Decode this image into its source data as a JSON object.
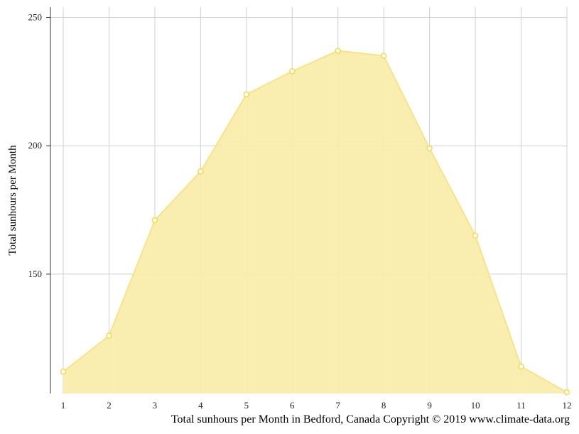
{
  "chart_data": {
    "type": "area",
    "x": [
      1,
      2,
      3,
      4,
      5,
      6,
      7,
      8,
      9,
      10,
      11,
      12
    ],
    "series": [
      {
        "values": [
          112,
          126,
          171,
          190,
          220,
          229,
          237,
          235,
          199,
          165,
          114,
          104
        ]
      }
    ],
    "ylabel": "Total sunhours per Month",
    "xlabel": "",
    "xticks": [
      "1",
      "2",
      "3",
      "4",
      "5",
      "6",
      "7",
      "8",
      "9",
      "10",
      "11",
      "12"
    ],
    "yticks": [
      "150",
      "200",
      "250"
    ],
    "ylim": [
      103.5,
      254
    ],
    "xlim": [
      1,
      12
    ],
    "grid": true,
    "fill_color": "#f9eca8",
    "line_color": "#f7e38a",
    "point_color": "#f5d94a",
    "grid_color": "#d0d0d0",
    "axis_color": "#333333"
  },
  "caption": "Total sunhours per Month in Bedford, Canada Copyright © 2019 www.climate-data.org"
}
